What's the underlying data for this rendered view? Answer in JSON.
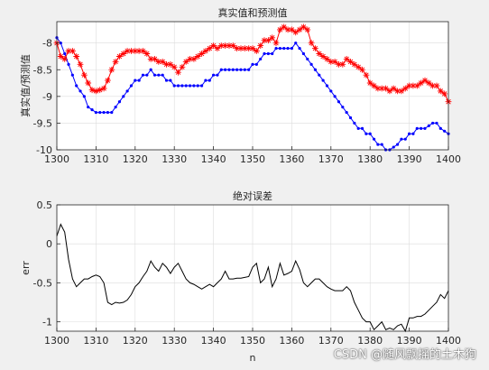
{
  "chart_data": [
    {
      "type": "line",
      "title": "真实值和预测值",
      "xlabel": "",
      "ylabel": "真实值/预测值",
      "xlim": [
        1300,
        1400
      ],
      "ylim": [
        -10,
        -7.6
      ],
      "xticks": [
        1300,
        1310,
        1320,
        1330,
        1340,
        1350,
        1360,
        1370,
        1380,
        1390,
        1400
      ],
      "yticks": [
        -10,
        -9.5,
        -9,
        -8.5,
        -8
      ],
      "xtick_labels": [
        "1300",
        "1310",
        "1320",
        "1330",
        "1340",
        "1350",
        "1360",
        "1370",
        "1380",
        "1390",
        "1400"
      ],
      "ytick_labels": [
        "-10",
        "-9.5",
        "-9",
        "-8.5",
        "-8"
      ],
      "grid": true,
      "series": [
        {
          "color": "#0000ff",
          "marker": "dot",
          "x": [
            1300,
            1301,
            1302,
            1303,
            1304,
            1305,
            1306,
            1307,
            1308,
            1309,
            1310,
            1311,
            1312,
            1313,
            1314,
            1315,
            1316,
            1317,
            1318,
            1319,
            1320,
            1321,
            1322,
            1323,
            1324,
            1325,
            1326,
            1327,
            1328,
            1329,
            1330,
            1331,
            1332,
            1333,
            1334,
            1335,
            1336,
            1337,
            1338,
            1339,
            1340,
            1341,
            1342,
            1343,
            1344,
            1345,
            1346,
            1347,
            1348,
            1349,
            1350,
            1351,
            1352,
            1353,
            1354,
            1355,
            1356,
            1357,
            1358,
            1359,
            1360,
            1361,
            1362,
            1363,
            1364,
            1365,
            1366,
            1367,
            1368,
            1369,
            1370,
            1371,
            1372,
            1373,
            1374,
            1375,
            1376,
            1377,
            1378,
            1379,
            1380,
            1381,
            1382,
            1383,
            1384,
            1385,
            1386,
            1387,
            1388,
            1389,
            1390,
            1391,
            1392,
            1393,
            1394,
            1395,
            1396,
            1397,
            1398,
            1399,
            1400
          ],
          "y": [
            -7.9,
            -8.0,
            -8.2,
            -8.4,
            -8.6,
            -8.8,
            -8.9,
            -9.0,
            -9.2,
            -9.25,
            -9.3,
            -9.3,
            -9.3,
            -9.3,
            -9.3,
            -9.2,
            -9.1,
            -9.0,
            -8.9,
            -8.8,
            -8.7,
            -8.7,
            -8.6,
            -8.6,
            -8.5,
            -8.6,
            -8.6,
            -8.6,
            -8.7,
            -8.7,
            -8.8,
            -8.8,
            -8.8,
            -8.8,
            -8.8,
            -8.8,
            -8.8,
            -8.8,
            -8.7,
            -8.7,
            -8.6,
            -8.6,
            -8.5,
            -8.5,
            -8.5,
            -8.5,
            -8.5,
            -8.5,
            -8.5,
            -8.5,
            -8.4,
            -8.4,
            -8.3,
            -8.2,
            -8.2,
            -8.2,
            -8.1,
            -8.1,
            -8.1,
            -8.1,
            -8.1,
            -8.0,
            -8.1,
            -8.2,
            -8.3,
            -8.4,
            -8.5,
            -8.6,
            -8.7,
            -8.8,
            -8.9,
            -9.0,
            -9.1,
            -9.2,
            -9.3,
            -9.4,
            -9.5,
            -9.6,
            -9.6,
            -9.7,
            -9.7,
            -9.8,
            -9.9,
            -9.9,
            -10.0,
            -10.0,
            -9.95,
            -9.9,
            -9.8,
            -9.8,
            -9.7,
            -9.7,
            -9.6,
            -9.6,
            -9.6,
            -9.55,
            -9.5,
            -9.5,
            -9.6,
            -9.65,
            -9.7
          ]
        },
        {
          "color": "#ff0000",
          "marker": "star",
          "x": [
            1300,
            1301,
            1302,
            1303,
            1304,
            1305,
            1306,
            1307,
            1308,
            1309,
            1310,
            1311,
            1312,
            1313,
            1314,
            1315,
            1316,
            1317,
            1318,
            1319,
            1320,
            1321,
            1322,
            1323,
            1324,
            1325,
            1326,
            1327,
            1328,
            1329,
            1330,
            1331,
            1332,
            1333,
            1334,
            1335,
            1336,
            1337,
            1338,
            1339,
            1340,
            1341,
            1342,
            1343,
            1344,
            1345,
            1346,
            1347,
            1348,
            1349,
            1350,
            1351,
            1352,
            1353,
            1354,
            1355,
            1356,
            1357,
            1358,
            1359,
            1360,
            1361,
            1362,
            1363,
            1364,
            1365,
            1366,
            1367,
            1368,
            1369,
            1370,
            1371,
            1372,
            1373,
            1374,
            1375,
            1376,
            1377,
            1378,
            1379,
            1380,
            1381,
            1382,
            1383,
            1384,
            1385,
            1386,
            1387,
            1388,
            1389,
            1390,
            1391,
            1392,
            1393,
            1394,
            1395,
            1396,
            1397,
            1398,
            1399,
            1400
          ],
          "y": [
            -8.0,
            -8.25,
            -8.3,
            -8.15,
            -8.15,
            -8.25,
            -8.4,
            -8.6,
            -8.75,
            -8.88,
            -8.9,
            -8.88,
            -8.85,
            -8.7,
            -8.5,
            -8.35,
            -8.25,
            -8.2,
            -8.15,
            -8.15,
            -8.15,
            -8.15,
            -8.15,
            -8.2,
            -8.3,
            -8.3,
            -8.35,
            -8.35,
            -8.4,
            -8.4,
            -8.45,
            -8.55,
            -8.45,
            -8.35,
            -8.3,
            -8.3,
            -8.25,
            -8.2,
            -8.15,
            -8.1,
            -8.05,
            -8.1,
            -8.05,
            -8.05,
            -8.05,
            -8.05,
            -8.1,
            -8.1,
            -8.1,
            -8.1,
            -8.1,
            -8.15,
            -8.05,
            -7.95,
            -7.95,
            -7.9,
            -8.0,
            -7.75,
            -7.7,
            -7.75,
            -7.75,
            -7.8,
            -7.75,
            -7.7,
            -7.75,
            -8.0,
            -8.1,
            -8.2,
            -8.25,
            -8.3,
            -8.35,
            -8.35,
            -8.4,
            -8.4,
            -8.3,
            -8.35,
            -8.4,
            -8.45,
            -8.5,
            -8.6,
            -8.75,
            -8.8,
            -8.85,
            -8.85,
            -8.85,
            -8.9,
            -8.85,
            -8.9,
            -8.9,
            -8.85,
            -8.8,
            -8.8,
            -8.8,
            -8.75,
            -8.7,
            -8.75,
            -8.8,
            -8.8,
            -8.9,
            -8.95,
            -9.1
          ]
        }
      ]
    },
    {
      "type": "line",
      "title": "绝对误差",
      "xlabel": "n",
      "ylabel": "err",
      "xlim": [
        1300,
        1400
      ],
      "ylim": [
        -1.12,
        0.5
      ],
      "xticks": [
        1300,
        1310,
        1320,
        1330,
        1340,
        1350,
        1360,
        1370,
        1380,
        1390,
        1400
      ],
      "yticks": [
        -1,
        -0.5,
        0,
        0.5
      ],
      "xtick_labels": [
        "1300",
        "1310",
        "1320",
        "1330",
        "1340",
        "1350",
        "1360",
        "1370",
        "1380",
        "1390",
        "1400"
      ],
      "ytick_labels": [
        "-1",
        "-0.5",
        "0",
        "0.5"
      ],
      "grid": true,
      "series": [
        {
          "color": "#000000",
          "marker": "none",
          "x": [
            1300,
            1301,
            1302,
            1303,
            1304,
            1305,
            1306,
            1307,
            1308,
            1309,
            1310,
            1311,
            1312,
            1313,
            1314,
            1315,
            1316,
            1317,
            1318,
            1319,
            1320,
            1321,
            1322,
            1323,
            1324,
            1325,
            1326,
            1327,
            1328,
            1329,
            1330,
            1331,
            1332,
            1333,
            1334,
            1335,
            1336,
            1337,
            1338,
            1339,
            1340,
            1341,
            1342,
            1343,
            1344,
            1345,
            1346,
            1347,
            1348,
            1349,
            1350,
            1351,
            1352,
            1353,
            1354,
            1355,
            1356,
            1357,
            1358,
            1359,
            1360,
            1361,
            1362,
            1363,
            1364,
            1365,
            1366,
            1367,
            1368,
            1369,
            1370,
            1371,
            1372,
            1373,
            1374,
            1375,
            1376,
            1377,
            1378,
            1379,
            1380,
            1381,
            1382,
            1383,
            1384,
            1385,
            1386,
            1387,
            1388,
            1389,
            1390,
            1391,
            1392,
            1393,
            1394,
            1395,
            1396,
            1397,
            1398,
            1399,
            1400
          ],
          "y": [
            0.1,
            0.25,
            0.15,
            -0.2,
            -0.45,
            -0.55,
            -0.5,
            -0.45,
            -0.45,
            -0.42,
            -0.4,
            -0.42,
            -0.5,
            -0.75,
            -0.78,
            -0.75,
            -0.76,
            -0.75,
            -0.72,
            -0.65,
            -0.55,
            -0.5,
            -0.42,
            -0.35,
            -0.22,
            -0.3,
            -0.35,
            -0.25,
            -0.3,
            -0.38,
            -0.3,
            -0.25,
            -0.35,
            -0.45,
            -0.5,
            -0.52,
            -0.55,
            -0.58,
            -0.55,
            -0.52,
            -0.55,
            -0.5,
            -0.45,
            -0.35,
            -0.45,
            -0.45,
            -0.44,
            -0.44,
            -0.43,
            -0.42,
            -0.3,
            -0.25,
            -0.5,
            -0.45,
            -0.3,
            -0.55,
            -0.45,
            -0.25,
            -0.4,
            -0.38,
            -0.35,
            -0.22,
            -0.33,
            -0.5,
            -0.55,
            -0.5,
            -0.45,
            -0.45,
            -0.5,
            -0.55,
            -0.58,
            -0.6,
            -0.6,
            -0.6,
            -0.55,
            -0.6,
            -0.75,
            -0.85,
            -0.95,
            -1.0,
            -1.0,
            -1.1,
            -1.05,
            -1.0,
            -1.1,
            -1.08,
            -1.1,
            -1.05,
            -1.03,
            -1.12,
            -0.95,
            -0.95,
            -0.93,
            -0.93,
            -0.9,
            -0.85,
            -0.8,
            -0.75,
            -0.65,
            -0.7,
            -0.6
          ]
        }
      ]
    }
  ],
  "watermark": "CSDN @随风飘摇的土木狗"
}
